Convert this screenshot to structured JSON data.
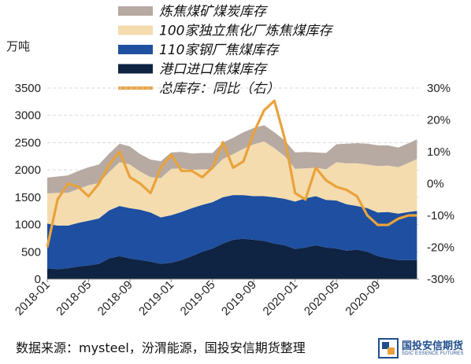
{
  "chart_data": {
    "type": "area",
    "stacked": true,
    "unit_label": "万吨",
    "x_ticks": [
      "2018-01",
      "2018-05",
      "2018-09",
      "2019-01",
      "2019-05",
      "2019-09",
      "2020-01",
      "2020-05",
      "2020-09"
    ],
    "y_left": {
      "lim": [
        0,
        3500
      ],
      "ticks": [
        0,
        500,
        1000,
        1500,
        2000,
        2500,
        3000,
        3500
      ]
    },
    "y_right": {
      "lim": [
        -30,
        30
      ],
      "ticks": [
        "-30%",
        "-20%",
        "-10%",
        "0%",
        "10%",
        "20%",
        "30%"
      ]
    },
    "grid": "horizontal-dashed",
    "legend": "top",
    "x_months": [
      0,
      1,
      2,
      3,
      4,
      5,
      6,
      7,
      8,
      9,
      10,
      11,
      12,
      13,
      14,
      15,
      16,
      17,
      18,
      19,
      20,
      21,
      22,
      23,
      24,
      25,
      26,
      27,
      28,
      29,
      30,
      31,
      32,
      33,
      34,
      35,
      35.8
    ],
    "series": [
      {
        "name": "炼焦煤矿煤炭库存",
        "color": "#b7aaa3",
        "values": [
          290,
          300,
          320,
          330,
          330,
          340,
          340,
          340,
          330,
          320,
          320,
          310,
          300,
          300,
          300,
          300,
          300,
          300,
          300,
          300,
          300,
          300,
          290,
          290,
          300,
          300,
          280,
          300,
          330,
          360,
          370,
          380,
          380,
          370,
          360,
          360,
          360
        ]
      },
      {
        "name": "100家独立焦化厂炼焦煤库存",
        "color": "#f4dcae",
        "values": [
          550,
          600,
          600,
          620,
          650,
          650,
          700,
          800,
          800,
          700,
          650,
          720,
          850,
          800,
          700,
          650,
          600,
          700,
          750,
          850,
          950,
          1000,
          900,
          780,
          600,
          550,
          520,
          560,
          700,
          750,
          780,
          800,
          850,
          850,
          850,
          900,
          950
        ]
      },
      {
        "name": "110家钢厂焦煤库存",
        "color": "#1e4fa0",
        "values": [
          820,
          800,
          780,
          800,
          820,
          830,
          880,
          920,
          920,
          920,
          900,
          850,
          870,
          880,
          880,
          860,
          850,
          850,
          820,
          800,
          800,
          820,
          850,
          850,
          870,
          900,
          900,
          870,
          880,
          850,
          800,
          800,
          800,
          850,
          850,
          880,
          900
        ]
      },
      {
        "name": "港口进口焦煤库存",
        "color": "#0f2342",
        "values": [
          200,
          180,
          200,
          230,
          250,
          280,
          380,
          420,
          380,
          350,
          320,
          280,
          300,
          350,
          420,
          500,
          560,
          650,
          720,
          740,
          720,
          700,
          650,
          620,
          550,
          580,
          620,
          580,
          560,
          520,
          540,
          500,
          420,
          380,
          350,
          350,
          350
        ]
      },
      {
        "name": "总库存：同比（右）",
        "color": "#e9a23b",
        "axis": "right",
        "values": [
          -20,
          -5,
          0,
          -1,
          -4,
          0,
          6,
          10,
          2,
          0,
          -3,
          5,
          9,
          4,
          4,
          2,
          5,
          13,
          5,
          7,
          16,
          23,
          26,
          14,
          -3,
          -5,
          5,
          1,
          -1,
          -2,
          -4,
          -10,
          -13,
          -13,
          -11,
          -10,
          -10
        ]
      }
    ]
  },
  "source_text": "数据来源：mysteel，汾渭能源，国投安信期货整理",
  "logo": {
    "name": "国投安信期货",
    "sub": "SDIC ESSENCE FUTURES",
    "color": "#1f4e8c"
  }
}
